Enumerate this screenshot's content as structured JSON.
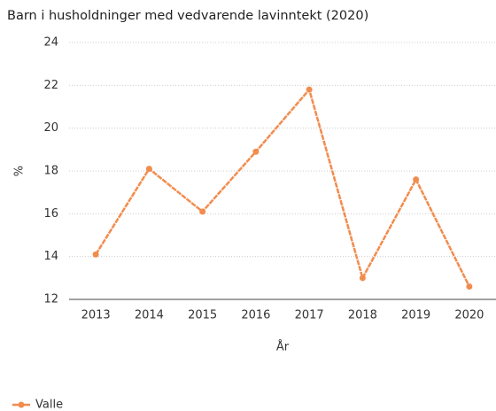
{
  "chart_data": {
    "type": "line",
    "title": "Barn i husholdninger med vedvarende lavinntekt (2020)",
    "y_label": "%",
    "x_label": "År",
    "categories": [
      "2013",
      "2014",
      "2015",
      "2016",
      "2017",
      "2018",
      "2019",
      "2020"
    ],
    "series": [
      {
        "name": "Valle",
        "color": "#f28c4e",
        "values": [
          14.1,
          18.1,
          16.1,
          18.9,
          21.8,
          13.0,
          17.6,
          12.6
        ]
      }
    ],
    "ylim": [
      12,
      24
    ],
    "yticks": [
      12,
      14,
      16,
      18,
      20,
      22,
      24
    ],
    "grid": true,
    "legend": "bottom-left"
  }
}
